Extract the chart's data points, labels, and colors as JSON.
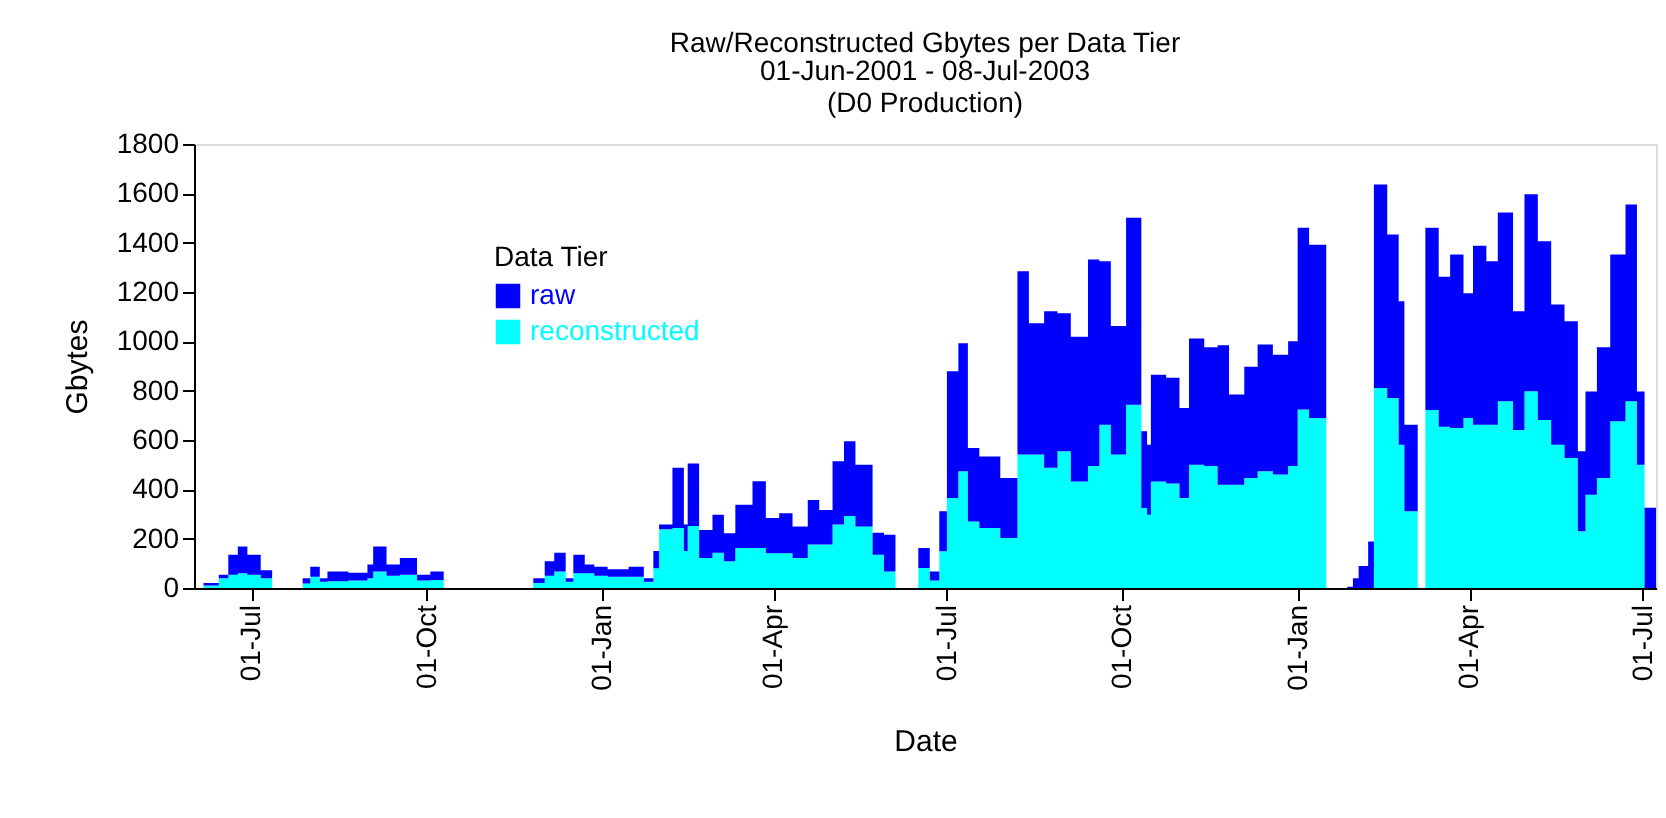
{
  "chart_data": {
    "type": "area",
    "stacked": true,
    "title": "Raw/Reconstructed Gbytes per Data Tier",
    "subtitle": "01-Jun-2001 - 08-Jul-2003\n(D0 Production)",
    "xlabel": "Date",
    "ylabel": "Gbytes",
    "legend_title": "Data Tier",
    "legend": "top left",
    "grid": false,
    "x": [
      "2001-06-01",
      "2001-06-06",
      "2001-06-14",
      "2001-06-19",
      "2001-06-24",
      "2001-06-29",
      "2001-07-06",
      "2001-07-12",
      "2001-07-28",
      "2001-08-01",
      "2001-08-06",
      "2001-08-10",
      "2001-08-21",
      "2001-08-31",
      "2001-09-03",
      "2001-09-10",
      "2001-09-17",
      "2001-09-26",
      "2001-10-03",
      "2001-10-10",
      "2001-11-26",
      "2001-12-02",
      "2001-12-07",
      "2001-12-13",
      "2001-12-17",
      "2001-12-23",
      "2001-12-28",
      "2002-01-04",
      "2002-01-15",
      "2002-01-23",
      "2002-01-28",
      "2002-01-31",
      "2002-02-07",
      "2002-02-13",
      "2002-02-15",
      "2002-02-21",
      "2002-02-28",
      "2002-03-06",
      "2002-03-12",
      "2002-03-21",
      "2002-03-28",
      "2002-04-04",
      "2002-04-11",
      "2002-04-19",
      "2002-04-25",
      "2002-05-02",
      "2002-05-08",
      "2002-05-14",
      "2002-05-23",
      "2002-05-29",
      "2002-06-04",
      "2002-06-16",
      "2002-06-22",
      "2002-06-27",
      "2002-07-01",
      "2002-07-07",
      "2002-07-12",
      "2002-07-18",
      "2002-07-29",
      "2002-08-07",
      "2002-08-13",
      "2002-08-21",
      "2002-08-28",
      "2002-09-04",
      "2002-09-13",
      "2002-09-19",
      "2002-09-25",
      "2002-10-03",
      "2002-10-11",
      "2002-10-14",
      "2002-10-16",
      "2002-10-24",
      "2002-10-31",
      "2002-11-05",
      "2002-11-13",
      "2002-11-20",
      "2002-11-26",
      "2002-12-04",
      "2002-12-11",
      "2002-12-19",
      "2002-12-27",
      "2003-01-01",
      "2003-01-07",
      "2003-01-16",
      "2003-01-27",
      "2003-01-30",
      "2003-02-02",
      "2003-02-07",
      "2003-02-10",
      "2003-02-17",
      "2003-02-23",
      "2003-02-26",
      "2003-03-05",
      "2003-03-09",
      "2003-03-16",
      "2003-03-22",
      "2003-03-29",
      "2003-04-03",
      "2003-04-10",
      "2003-04-16",
      "2003-04-24",
      "2003-04-30",
      "2003-05-07",
      "2003-05-14",
      "2003-05-21",
      "2003-05-28",
      "2003-06-01",
      "2003-06-07",
      "2003-06-14",
      "2003-06-22",
      "2003-06-28",
      "2003-07-02",
      "2003-07-08"
    ],
    "series": [
      {
        "name": "reconstructed",
        "color": "#00ffff",
        "values": [
          0,
          10,
          40,
          54,
          60,
          54,
          40,
          0,
          18,
          46,
          25,
          27,
          30,
          40,
          67,
          50,
          54,
          30,
          32,
          0,
          20,
          50,
          67,
          25,
          60,
          60,
          50,
          46,
          46,
          25,
          80,
          238,
          243,
          150,
          251,
          122,
          143,
          108,
          162,
          162,
          141,
          141,
          122,
          176,
          176,
          257,
          292,
          249,
          135,
          67,
          0,
          81,
          30,
          149,
          365,
          473,
          270,
          243,
          203,
          541,
          541,
          487,
          554,
          432,
          495,
          662,
          541,
          743,
          324,
          297,
          432,
          424,
          365,
          500,
          495,
          419,
          419,
          446,
          473,
          460,
          495,
          724,
          689,
          0,
          0,
          0,
          0,
          0,
          811,
          770,
          581,
          311,
          0,
          722,
          654,
          649,
          689,
          662,
          662,
          757,
          641,
          798,
          681,
          581,
          527,
          230,
          378,
          446,
          676,
          757,
          500,
          0,
          0
        ]
      },
      {
        "name": "raw",
        "color": "#0000ff",
        "values": [
          0,
          10,
          14,
          81,
          108,
          81,
          32,
          0,
          22,
          40,
          15,
          40,
          32,
          55,
          101,
          45,
          68,
          24,
          35,
          0,
          20,
          58,
          76,
          15,
          75,
          35,
          36,
          30,
          40,
          15,
          70,
          19,
          244,
          107,
          254,
          113,
          154,
          114,
          176,
          271,
          143,
          162,
          127,
          181,
          140,
          257,
          303,
          251,
          89,
          149,
          0,
          81,
          37,
          162,
          514,
          519,
          298,
          290,
          243,
          743,
          532,
          635,
          560,
          587,
          837,
          663,
          521,
          758,
          311,
          284,
          433,
          428,
          365,
          511,
          481,
          565,
          365,
          451,
          514,
          486,
          505,
          736,
          703,
          0,
          5,
          40,
          89,
          189,
          825,
          663,
          581,
          351,
          0,
          738,
          608,
          703,
          506,
          725,
          663,
          765,
          481,
          798,
          725,
          568,
          554,
          324,
          419,
          530,
          676,
          798,
          297,
          325,
          325
        ]
      }
    ],
    "ylim": [
      0,
      1800
    ],
    "yticks": [
      0,
      200,
      400,
      600,
      800,
      1000,
      1200,
      1400,
      1600,
      1800
    ],
    "xlim": [
      "2001-06-01",
      "2003-07-08"
    ],
    "xticks": [
      {
        "value": "2001-07-01",
        "label": "01-Jul"
      },
      {
        "value": "2001-10-01",
        "label": "01-Oct"
      },
      {
        "value": "2002-01-01",
        "label": "01-Jan"
      },
      {
        "value": "2002-04-01",
        "label": "01-Apr"
      },
      {
        "value": "2002-07-01",
        "label": "01-Jul"
      },
      {
        "value": "2002-10-01",
        "label": "01-Oct"
      },
      {
        "value": "2003-01-01",
        "label": "01-Jan"
      },
      {
        "value": "2003-04-01",
        "label": "01-Apr"
      },
      {
        "value": "2003-07-01",
        "label": "01-Jul"
      }
    ]
  }
}
